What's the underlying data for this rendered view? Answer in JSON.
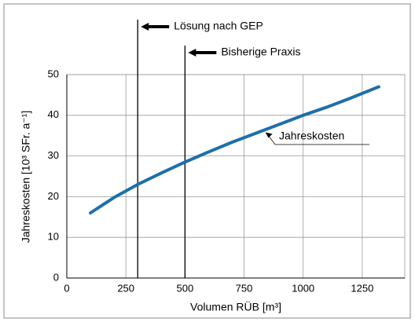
{
  "chart_data": {
    "type": "line",
    "x": [
      100,
      200,
      300,
      400,
      500,
      600,
      700,
      800,
      900,
      1000,
      1100,
      1200,
      1320
    ],
    "series": [
      {
        "name": "Jahreskosten",
        "color": "#1f6fa8",
        "values": [
          16,
          19.8,
          23,
          25.8,
          28.5,
          31,
          33.4,
          35.6,
          37.8,
          40,
          42,
          44.2,
          47
        ]
      }
    ],
    "xlabel": "Volumen RÜB [m³]",
    "ylabel": "Jahreskosten [10³ SFr. a⁻¹]",
    "xlim": [
      0,
      1430
    ],
    "xticks": [
      0,
      250,
      500,
      750,
      1000,
      1250
    ],
    "ylim": [
      0,
      50
    ],
    "yticks": [
      0,
      10,
      20,
      30,
      40,
      50
    ],
    "grid": true,
    "vlines": [
      {
        "value": 300,
        "label": "Lösung nach GEP"
      },
      {
        "value": 500,
        "label": "Bisherige Praxis"
      }
    ]
  }
}
